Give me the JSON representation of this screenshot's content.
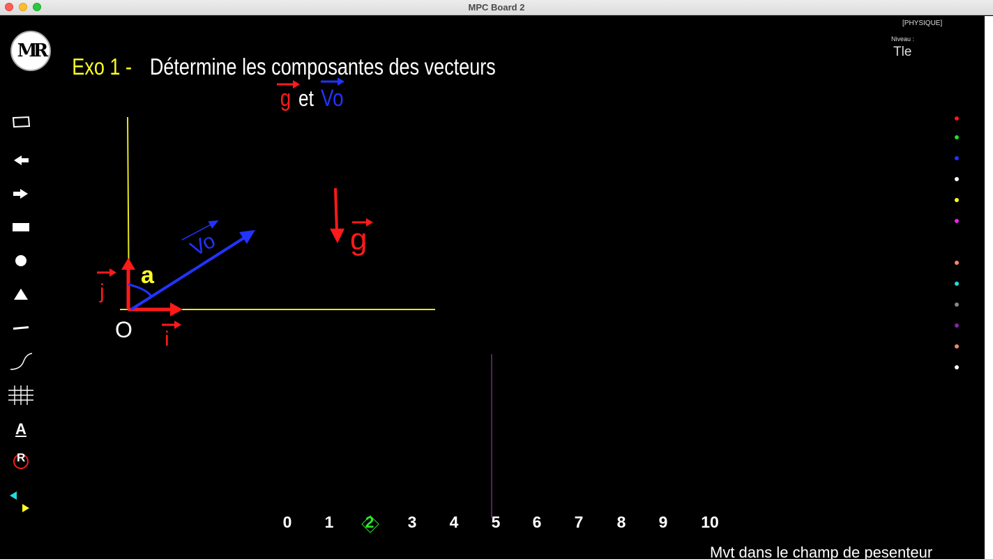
{
  "window": {
    "title": "MPC Board 2"
  },
  "header": {
    "subject": "[PHYSIQUE]",
    "level_label": "Niveau :",
    "level_value": "Tle",
    "logo_text": "MR"
  },
  "exercise": {
    "label": "Exo 1 -",
    "instruction": "Détermine les composantes des vecteurs",
    "vec_g": "g",
    "conj": "et",
    "vec_vo": "Vo"
  },
  "drawing": {
    "origin_label": "O",
    "i_label": "i",
    "j_label": "j",
    "angle_label": "a",
    "vo_label": "Vo",
    "g_label": "g"
  },
  "tools": [
    {
      "name": "frame-tool",
      "icon": "rectangle-outline-icon"
    },
    {
      "name": "previous-tool",
      "icon": "arrow-left-icon"
    },
    {
      "name": "next-tool",
      "icon": "arrow-right-icon"
    },
    {
      "name": "filled-rectangle-tool",
      "icon": "filled-rectangle-icon"
    },
    {
      "name": "circle-tool",
      "icon": "circle-icon"
    },
    {
      "name": "triangle-tool",
      "icon": "triangle-icon"
    },
    {
      "name": "line-tool",
      "icon": "line-icon"
    },
    {
      "name": "curve-tool",
      "icon": "curve-icon"
    },
    {
      "name": "grid-tool",
      "icon": "grid-icon"
    },
    {
      "name": "text-tool",
      "icon": "text-a-icon",
      "label": "A"
    },
    {
      "name": "reset-tool",
      "icon": "reset-r-icon",
      "label": "R"
    },
    {
      "name": "pager-tool",
      "icon": "pager-arrows-icon"
    }
  ],
  "palette": [
    {
      "name": "red",
      "color": "#ff1a1a"
    },
    {
      "name": "green",
      "color": "#22dd22"
    },
    {
      "name": "blue",
      "color": "#2233ff"
    },
    {
      "name": "white",
      "color": "#ffffff"
    },
    {
      "name": "yellow",
      "color": "#ffff22"
    },
    {
      "name": "magenta",
      "color": "#ee22ee"
    },
    {
      "name": "salmon",
      "color": "#ff8866"
    },
    {
      "name": "cyan",
      "color": "#22dddd"
    },
    {
      "name": "gray",
      "color": "#888888"
    },
    {
      "name": "purple",
      "color": "#8822aa"
    },
    {
      "name": "light-salmon",
      "color": "#ee8877"
    },
    {
      "name": "white-2",
      "color": "#ffffff"
    }
  ],
  "pages": [
    "0",
    "1",
    "2",
    "3",
    "4",
    "5",
    "6",
    "7",
    "8",
    "9",
    "10"
  ],
  "active_page": "2",
  "footer": {
    "chapter": "Mvt dans le champ de pesenteur"
  }
}
